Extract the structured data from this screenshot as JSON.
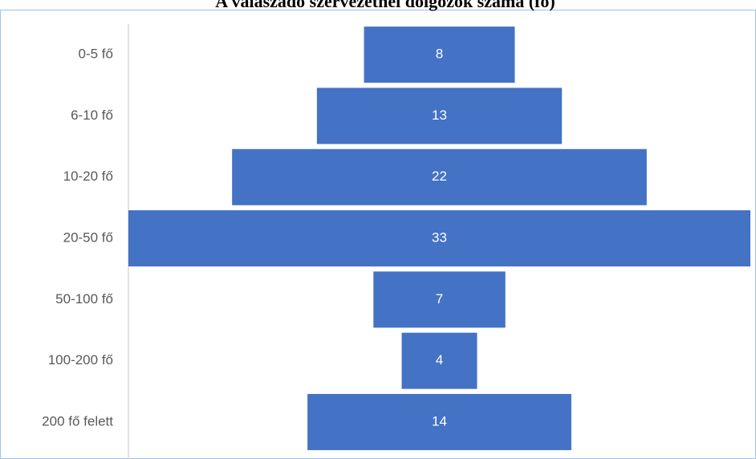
{
  "chart_data": {
    "type": "funnel",
    "title": "A válaszadó szervezetnél dolgozók száma (fő)",
    "categories": [
      "0-5 fő",
      "6-10 fő",
      "10-20 fő",
      "20-50 fő",
      "50-100 fő",
      "100-200 fő",
      "200 fő felett"
    ],
    "values": [
      8,
      13,
      22,
      33,
      7,
      4,
      14
    ],
    "color": "#4472c4"
  }
}
